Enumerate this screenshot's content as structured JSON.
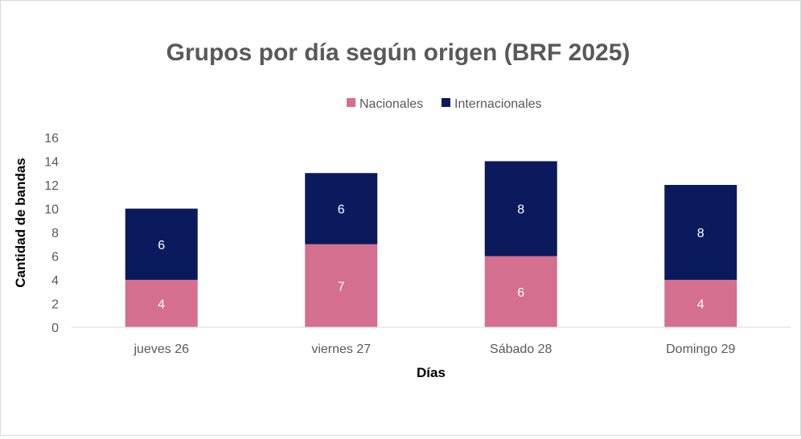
{
  "chart_data": {
    "type": "bar",
    "stacked": true,
    "title": "Grupos por día según origen (BRF 2025)",
    "xlabel": "Días",
    "ylabel": "Cantidad de bandas",
    "categories": [
      "jueves 26",
      "viernes 27",
      "Sábado 28",
      "Domingo 29"
    ],
    "series": [
      {
        "name": "Nacionales",
        "values": [
          4,
          7,
          6,
          4
        ],
        "color": "#d56f8f",
        "label_color": "#ffffff"
      },
      {
        "name": "Internacionales",
        "values": [
          6,
          6,
          8,
          8
        ],
        "color": "#0a1a5c",
        "label_color": "#ffffff"
      }
    ],
    "ylim": [
      0,
      16
    ],
    "yticks": [
      0,
      2,
      4,
      6,
      8,
      10,
      12,
      14,
      16
    ],
    "grid": false,
    "legend": "top",
    "text_color": "#595959",
    "title_color": "#595959"
  }
}
